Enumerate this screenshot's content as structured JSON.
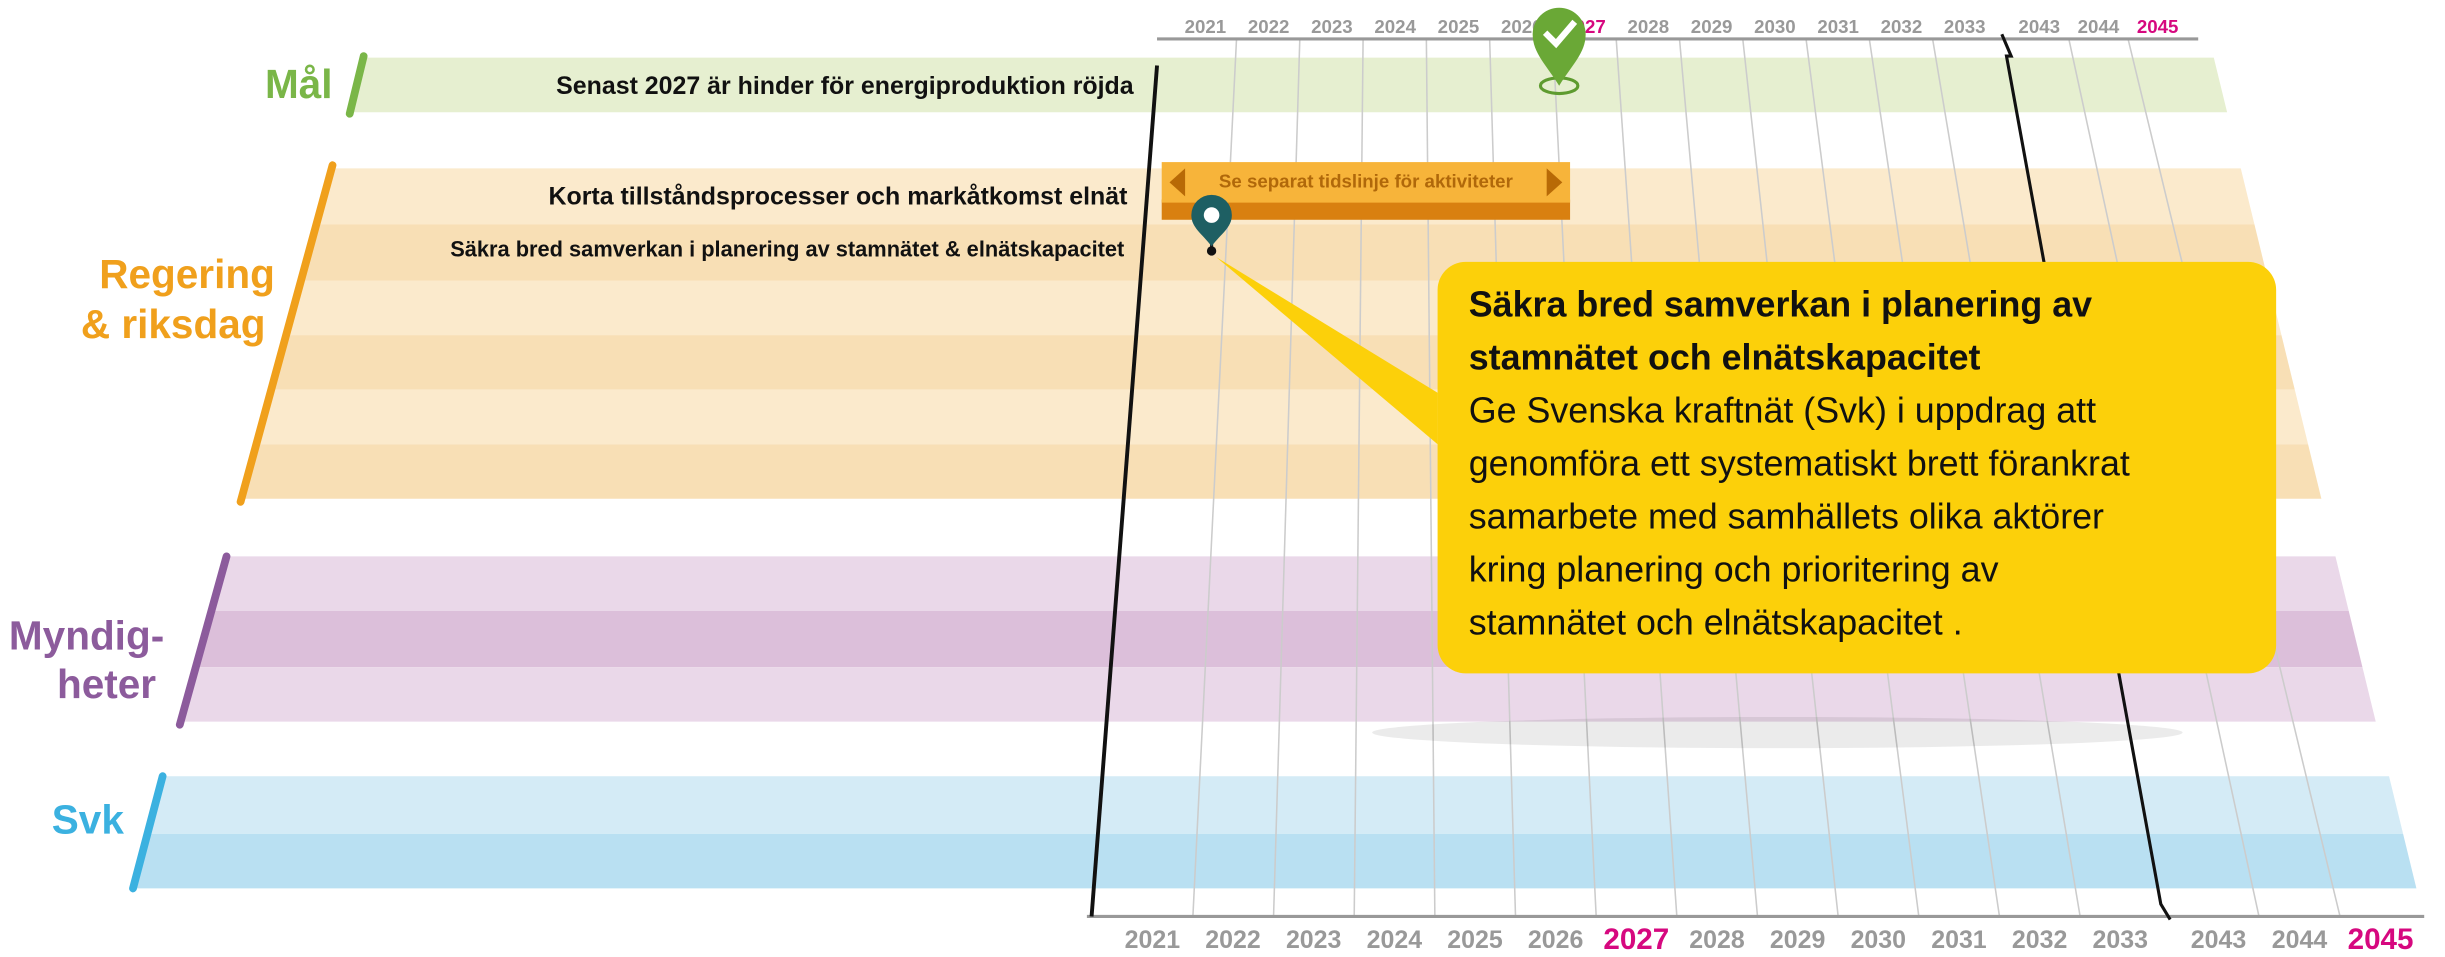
{
  "groups": [
    {
      "lines": [
        "Mål"
      ]
    },
    {
      "lines": [
        "Regering",
        "& riksdag"
      ]
    },
    {
      "lines": [
        "Myndig-",
        "heter"
      ]
    },
    {
      "lines": [
        "Svk"
      ]
    }
  ],
  "rows": [
    "Senast 2027 är hinder för energiproduktion röjda",
    "Korta tillståndsprocesser och markåtkomst elnät",
    "Säkra bred samverkan i planering av stamnätet & elnätskapacitet"
  ],
  "activity_bar": "Se separat tidslinje för aktiviteter",
  "years": [
    {
      "label": "2021"
    },
    {
      "label": "2022"
    },
    {
      "label": "2023"
    },
    {
      "label": "2024"
    },
    {
      "label": "2025"
    },
    {
      "label": "2026"
    },
    {
      "label": "2027",
      "highlight": true
    },
    {
      "label": "2028"
    },
    {
      "label": "2029"
    },
    {
      "label": "2030"
    },
    {
      "label": "2031"
    },
    {
      "label": "2032"
    },
    {
      "label": "2033"
    },
    {
      "label": "2043"
    },
    {
      "label": "2044"
    },
    {
      "label": "2045",
      "highlight": true
    }
  ],
  "callout": {
    "title": [
      "Säkra bred samverkan i planering av",
      "stamnätet och elnätskapacitet"
    ],
    "body": [
      "Ge Svenska kraftnät (Svk) i uppdrag att",
      "genomföra ett systematiskt brett förankrat",
      "samarbete med samhällets olika aktörer",
      "kring planering och prioritering av",
      "stamnätet och elnätskapacitet ."
    ]
  }
}
